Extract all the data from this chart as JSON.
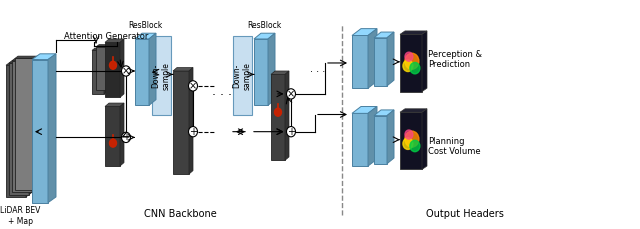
{
  "bg_color": "#ffffff",
  "block_color": "#7ab4d4",
  "block_color_light": "#a8cce0",
  "block_color_dark": "#5a94b4",
  "block_edge": "#4a80a0",
  "dark_map": "#4a4a4a",
  "dark_map2": "#383838",
  "text_color": "#000000",
  "gray_map": "#707070",
  "labels": {
    "lidar": "LiDAR BEV\n+ Map",
    "attention_gen": "Attention Generator",
    "resblock1": "ResBlock",
    "downsample1": "Down-\nsample",
    "downsample2": "Down-\nsample",
    "resblock2": "ResBlock",
    "cnn_backbone": "CNN Backbone",
    "output_headers": "Output Headers",
    "perception": "Perception &\nPrediction",
    "planning": "Planning\nCost Volume"
  },
  "figsize": [
    6.4,
    2.29
  ],
  "dpi": 100
}
